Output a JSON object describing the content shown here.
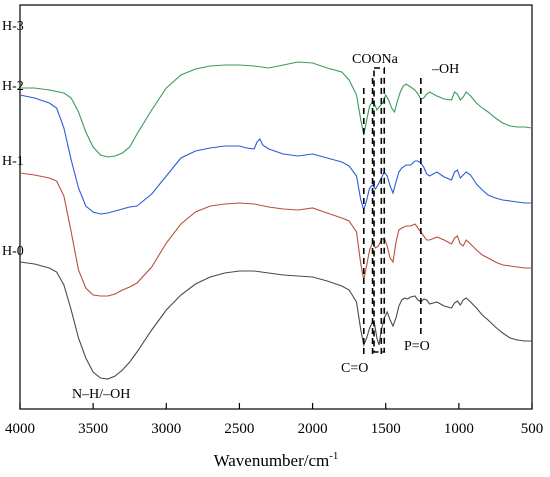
{
  "chart_data": {
    "type": "line",
    "xlabel": "Wavenumber/cm",
    "xlabel_superscript": "-1",
    "xlim": [
      4000,
      500
    ],
    "x_reversed": true,
    "x_ticks": [
      4000,
      3500,
      3000,
      2500,
      2000,
      1500,
      1000,
      500
    ],
    "y_ticks": [],
    "grid": false,
    "legend": "none",
    "series": [
      {
        "name": "H-3",
        "color": "#3a9a5a",
        "points": [
          [
            4000,
            88
          ],
          [
            3900,
            88
          ],
          [
            3800,
            90
          ],
          [
            3700,
            93
          ],
          [
            3650,
            98
          ],
          [
            3600,
            112
          ],
          [
            3550,
            132
          ],
          [
            3500,
            147
          ],
          [
            3450,
            155
          ],
          [
            3400,
            157
          ],
          [
            3350,
            156
          ],
          [
            3300,
            153
          ],
          [
            3250,
            147
          ],
          [
            3200,
            134
          ],
          [
            3100,
            110
          ],
          [
            3000,
            88
          ],
          [
            2900,
            75
          ],
          [
            2800,
            69
          ],
          [
            2700,
            66
          ],
          [
            2600,
            65
          ],
          [
            2500,
            65
          ],
          [
            2400,
            66
          ],
          [
            2300,
            68
          ],
          [
            2200,
            65
          ],
          [
            2100,
            62
          ],
          [
            2000,
            63
          ],
          [
            1900,
            68
          ],
          [
            1800,
            72
          ],
          [
            1750,
            80
          ],
          [
            1700,
            95
          ],
          [
            1670,
            120
          ],
          [
            1650,
            135
          ],
          [
            1630,
            120
          ],
          [
            1610,
            106
          ],
          [
            1590,
            102
          ],
          [
            1570,
            106
          ],
          [
            1560,
            110
          ],
          [
            1540,
            106
          ],
          [
            1520,
            103
          ],
          [
            1500,
            95
          ],
          [
            1480,
            100
          ],
          [
            1460,
            108
          ],
          [
            1440,
            112
          ],
          [
            1420,
            101
          ],
          [
            1400,
            92
          ],
          [
            1380,
            86
          ],
          [
            1360,
            84
          ],
          [
            1340,
            86
          ],
          [
            1320,
            88
          ],
          [
            1300,
            90
          ],
          [
            1280,
            94
          ],
          [
            1260,
            99
          ],
          [
            1240,
            98
          ],
          [
            1220,
            94
          ],
          [
            1200,
            92
          ],
          [
            1150,
            96
          ],
          [
            1100,
            99
          ],
          [
            1050,
            100
          ],
          [
            1030,
            92
          ],
          [
            1010,
            94
          ],
          [
            990,
            100
          ],
          [
            970,
            97
          ],
          [
            950,
            92
          ],
          [
            920,
            96
          ],
          [
            880,
            103
          ],
          [
            840,
            108
          ],
          [
            800,
            112
          ],
          [
            750,
            118
          ],
          [
            700,
            123
          ],
          [
            650,
            126
          ],
          [
            600,
            127
          ],
          [
            550,
            127
          ],
          [
            500,
            128
          ]
        ]
      },
      {
        "name": "H-2",
        "color": "#2a5cd8",
        "points": [
          [
            4000,
            95
          ],
          [
            3900,
            98
          ],
          [
            3800,
            103
          ],
          [
            3750,
            108
          ],
          [
            3700,
            128
          ],
          [
            3650,
            160
          ],
          [
            3600,
            188
          ],
          [
            3550,
            206
          ],
          [
            3500,
            212
          ],
          [
            3450,
            214
          ],
          [
            3400,
            213
          ],
          [
            3350,
            211
          ],
          [
            3300,
            209
          ],
          [
            3250,
            207
          ],
          [
            3200,
            206
          ],
          [
            3100,
            194
          ],
          [
            3000,
            176
          ],
          [
            2900,
            158
          ],
          [
            2800,
            151
          ],
          [
            2700,
            148
          ],
          [
            2600,
            146
          ],
          [
            2500,
            146
          ],
          [
            2450,
            148
          ],
          [
            2400,
            149
          ],
          [
            2380,
            142
          ],
          [
            2360,
            139
          ],
          [
            2340,
            145
          ],
          [
            2300,
            149
          ],
          [
            2200,
            154
          ],
          [
            2100,
            156
          ],
          [
            2000,
            154
          ],
          [
            1900,
            158
          ],
          [
            1800,
            162
          ],
          [
            1750,
            166
          ],
          [
            1700,
            176
          ],
          [
            1670,
            200
          ],
          [
            1650,
            210
          ],
          [
            1630,
            200
          ],
          [
            1610,
            188
          ],
          [
            1590,
            185
          ],
          [
            1570,
            189
          ],
          [
            1550,
            184
          ],
          [
            1530,
            178
          ],
          [
            1510,
            172
          ],
          [
            1490,
            176
          ],
          [
            1470,
            186
          ],
          [
            1450,
            193
          ],
          [
            1430,
            182
          ],
          [
            1410,
            172
          ],
          [
            1390,
            168
          ],
          [
            1360,
            165
          ],
          [
            1330,
            165
          ],
          [
            1300,
            161
          ],
          [
            1280,
            161
          ],
          [
            1260,
            163
          ],
          [
            1240,
            167
          ],
          [
            1220,
            174
          ],
          [
            1200,
            176
          ],
          [
            1150,
            172
          ],
          [
            1100,
            177
          ],
          [
            1050,
            180
          ],
          [
            1030,
            172
          ],
          [
            1010,
            170
          ],
          [
            990,
            178
          ],
          [
            970,
            175
          ],
          [
            950,
            172
          ],
          [
            920,
            175
          ],
          [
            880,
            184
          ],
          [
            840,
            190
          ],
          [
            800,
            195
          ],
          [
            750,
            198
          ],
          [
            700,
            200
          ],
          [
            650,
            201
          ],
          [
            600,
            202
          ],
          [
            550,
            203
          ],
          [
            500,
            203
          ]
        ]
      },
      {
        "name": "H-1",
        "color": "#b8503a",
        "points": [
          [
            4000,
            173
          ],
          [
            3900,
            175
          ],
          [
            3800,
            178
          ],
          [
            3750,
            181
          ],
          [
            3700,
            196
          ],
          [
            3650,
            232
          ],
          [
            3600,
            270
          ],
          [
            3550,
            288
          ],
          [
            3500,
            295
          ],
          [
            3450,
            296
          ],
          [
            3400,
            296
          ],
          [
            3350,
            294
          ],
          [
            3300,
            290
          ],
          [
            3250,
            287
          ],
          [
            3200,
            283
          ],
          [
            3100,
            267
          ],
          [
            3000,
            243
          ],
          [
            2900,
            224
          ],
          [
            2800,
            212
          ],
          [
            2700,
            206
          ],
          [
            2600,
            204
          ],
          [
            2500,
            203
          ],
          [
            2400,
            204
          ],
          [
            2300,
            207
          ],
          [
            2200,
            209
          ],
          [
            2100,
            210
          ],
          [
            2000,
            208
          ],
          [
            1900,
            213
          ],
          [
            1800,
            218
          ],
          [
            1750,
            221
          ],
          [
            1700,
            232
          ],
          [
            1670,
            264
          ],
          [
            1650,
            280
          ],
          [
            1630,
            265
          ],
          [
            1610,
            250
          ],
          [
            1590,
            243
          ],
          [
            1570,
            248
          ],
          [
            1550,
            246
          ],
          [
            1530,
            240
          ],
          [
            1510,
            238
          ],
          [
            1490,
            246
          ],
          [
            1470,
            258
          ],
          [
            1450,
            262
          ],
          [
            1430,
            242
          ],
          [
            1410,
            230
          ],
          [
            1390,
            228
          ],
          [
            1360,
            226
          ],
          [
            1330,
            226
          ],
          [
            1300,
            224
          ],
          [
            1280,
            228
          ],
          [
            1260,
            232
          ],
          [
            1240,
            236
          ],
          [
            1220,
            240
          ],
          [
            1200,
            240
          ],
          [
            1150,
            237
          ],
          [
            1100,
            240
          ],
          [
            1050,
            244
          ],
          [
            1030,
            238
          ],
          [
            1010,
            236
          ],
          [
            990,
            244
          ],
          [
            970,
            246
          ],
          [
            950,
            240
          ],
          [
            920,
            244
          ],
          [
            880,
            250
          ],
          [
            840,
            255
          ],
          [
            800,
            258
          ],
          [
            750,
            262
          ],
          [
            700,
            265
          ],
          [
            650,
            266
          ],
          [
            600,
            267
          ],
          [
            550,
            268
          ],
          [
            500,
            268
          ]
        ]
      },
      {
        "name": "H-0",
        "color": "#4a4a4a",
        "points": [
          [
            4000,
            262
          ],
          [
            3900,
            264
          ],
          [
            3800,
            268
          ],
          [
            3750,
            272
          ],
          [
            3700,
            285
          ],
          [
            3650,
            310
          ],
          [
            3600,
            338
          ],
          [
            3550,
            358
          ],
          [
            3500,
            372
          ],
          [
            3450,
            378
          ],
          [
            3400,
            379
          ],
          [
            3350,
            376
          ],
          [
            3300,
            370
          ],
          [
            3250,
            362
          ],
          [
            3200,
            352
          ],
          [
            3100,
            330
          ],
          [
            3000,
            310
          ],
          [
            2900,
            295
          ],
          [
            2800,
            284
          ],
          [
            2700,
            277
          ],
          [
            2600,
            273
          ],
          [
            2500,
            271
          ],
          [
            2400,
            271
          ],
          [
            2300,
            273
          ],
          [
            2200,
            275
          ],
          [
            2100,
            276
          ],
          [
            2000,
            277
          ],
          [
            1900,
            281
          ],
          [
            1800,
            286
          ],
          [
            1750,
            290
          ],
          [
            1700,
            302
          ],
          [
            1670,
            330
          ],
          [
            1650,
            345
          ],
          [
            1630,
            338
          ],
          [
            1610,
            328
          ],
          [
            1590,
            322
          ],
          [
            1575,
            325
          ],
          [
            1560,
            338
          ],
          [
            1545,
            345
          ],
          [
            1530,
            330
          ],
          [
            1510,
            318
          ],
          [
            1490,
            312
          ],
          [
            1470,
            320
          ],
          [
            1450,
            326
          ],
          [
            1430,
            318
          ],
          [
            1410,
            306
          ],
          [
            1390,
            300
          ],
          [
            1370,
            298
          ],
          [
            1350,
            299
          ],
          [
            1330,
            297
          ],
          [
            1300,
            296
          ],
          [
            1280,
            300
          ],
          [
            1260,
            302
          ],
          [
            1240,
            299
          ],
          [
            1220,
            300
          ],
          [
            1200,
            304
          ],
          [
            1150,
            302
          ],
          [
            1100,
            306
          ],
          [
            1050,
            308
          ],
          [
            1030,
            303
          ],
          [
            1010,
            301
          ],
          [
            990,
            305
          ],
          [
            970,
            300
          ],
          [
            950,
            298
          ],
          [
            920,
            302
          ],
          [
            880,
            308
          ],
          [
            840,
            315
          ],
          [
            800,
            320
          ],
          [
            750,
            327
          ],
          [
            700,
            333
          ],
          [
            650,
            338
          ],
          [
            600,
            340
          ],
          [
            550,
            341
          ],
          [
            500,
            341
          ]
        ]
      }
    ],
    "series_labels": [
      "H-3",
      "H-2",
      "H-1",
      "H-0"
    ],
    "annotations": {
      "coona": "COONa",
      "oh": "–OH",
      "nh_oh": "N–H/–OH",
      "co": "C=O",
      "po": "P=O"
    },
    "guide_lines_x": [
      1650,
      1590,
      1530,
      1260
    ],
    "box_x": [
      1580,
      1510
    ]
  }
}
